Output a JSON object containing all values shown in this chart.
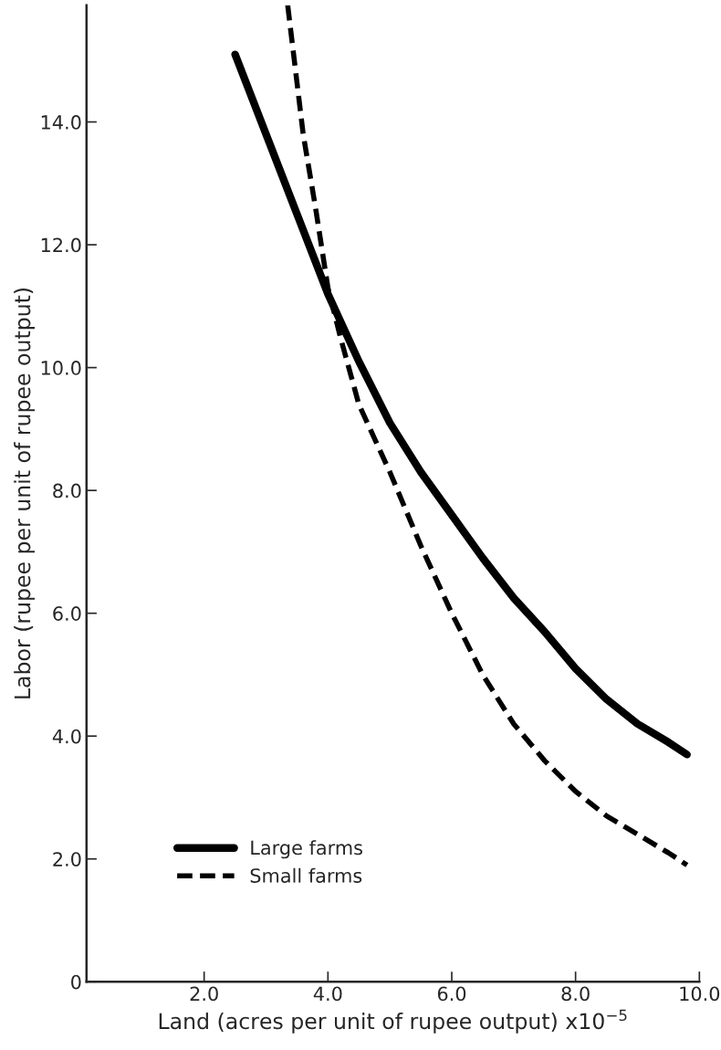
{
  "chart_data": {
    "type": "line",
    "xlabel": "Land (acres per unit of rupee output) x10$^{−5}$",
    "ylabel": "Labor (rupee per unit of rupee output)",
    "xlim": [
      0.1,
      10.0
    ],
    "ylim": [
      0,
      15.9
    ],
    "xticks": [
      {
        "value": 2,
        "label": "2.0"
      },
      {
        "value": 4,
        "label": "4.0"
      },
      {
        "value": 6,
        "label": "6.0"
      },
      {
        "value": 8,
        "label": "8.0"
      },
      {
        "value": 10,
        "label": "10.0"
      }
    ],
    "yticks": [
      0,
      {
        "value": 2,
        "label": "2.0"
      },
      {
        "value": 4,
        "label": "4.0"
      },
      {
        "value": 6,
        "label": "6.0"
      },
      {
        "value": 8,
        "label": "8.0"
      },
      {
        "value": 10,
        "label": "10.0"
      },
      {
        "value": 12,
        "label": "12.0"
      },
      {
        "value": 14,
        "label": "14.0"
      }
    ],
    "grid": false,
    "legend": "bottom left",
    "series": [
      {
        "name": "Large farms",
        "color": "#000000",
        "line_style": "solid",
        "x": [
          2.5,
          3.0,
          3.5,
          4.0,
          4.5,
          5.0,
          5.5,
          6.0,
          6.5,
          7.0,
          7.5,
          8.0,
          8.5,
          9.0,
          9.5,
          9.8
        ],
        "values": [
          15.1,
          13.8,
          12.5,
          11.2,
          10.1,
          9.1,
          8.3,
          7.6,
          6.9,
          6.25,
          5.7,
          5.1,
          4.6,
          4.2,
          3.9,
          3.7
        ]
      },
      {
        "name": "Small farms",
        "color": "#000000",
        "line_style": "dashed",
        "x": [
          3.35,
          3.6,
          3.8,
          4.0,
          4.2,
          4.5,
          5.0,
          5.5,
          6.0,
          6.5,
          7.0,
          7.5,
          8.0,
          8.5,
          9.0,
          9.5,
          9.8
        ],
        "values": [
          15.9,
          13.8,
          12.6,
          11.3,
          10.5,
          9.4,
          8.3,
          7.1,
          6.0,
          5.0,
          4.2,
          3.6,
          3.1,
          2.7,
          2.4,
          2.1,
          1.9
        ]
      }
    ]
  }
}
